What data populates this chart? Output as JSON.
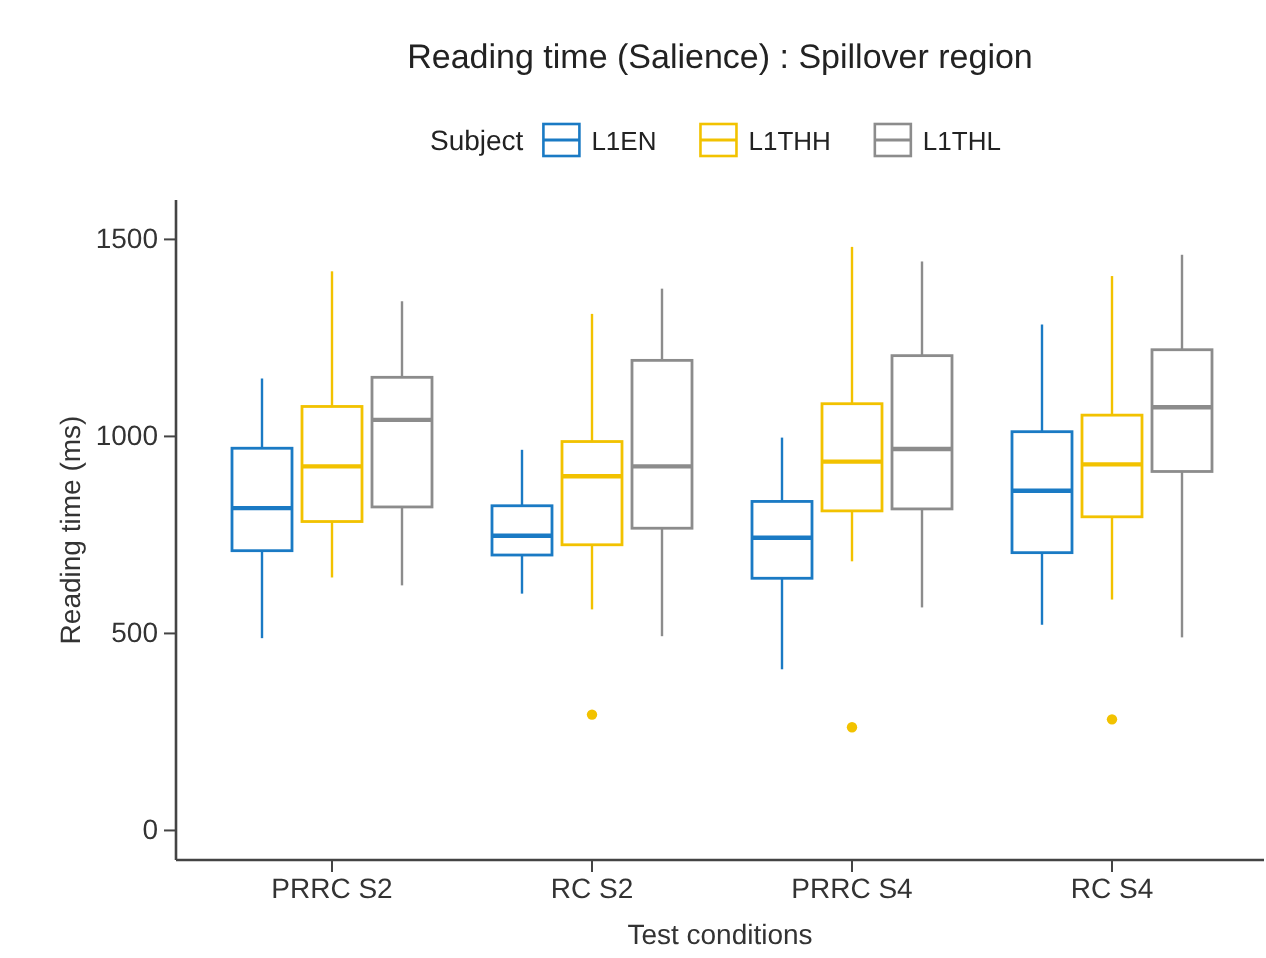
{
  "chart_data": {
    "type": "box",
    "title": "Reading time (Salience) : Spillover region",
    "xlabel": "Test conditions",
    "ylabel": "Reading time (ms)",
    "legend_title": "Subject",
    "legend": "top",
    "categories": [
      "PRRC S2",
      "RC S2",
      "PRRC S4",
      "RC S4"
    ],
    "ylim": [
      -75,
      1600
    ],
    "yticks": [
      0,
      500,
      1000,
      1500
    ],
    "grid": false,
    "series": [
      {
        "name": "L1EN",
        "color": "#1a7ac4",
        "boxes": [
          {
            "low": 488,
            "q1": 710,
            "median": 818,
            "q3": 970,
            "high": 1147
          },
          {
            "low": 601,
            "q1": 699,
            "median": 748,
            "q3": 824,
            "high": 966
          },
          {
            "low": 409,
            "q1": 640,
            "median": 743,
            "q3": 835,
            "high": 997
          },
          {
            "low": 522,
            "q1": 705,
            "median": 862,
            "q3": 1012,
            "high": 1284
          }
        ]
      },
      {
        "name": "L1THH",
        "color": "#f2c200",
        "boxes": [
          {
            "low": 642,
            "q1": 784,
            "median": 924,
            "q3": 1076,
            "high": 1419
          },
          {
            "low": 561,
            "q1": 725,
            "median": 899,
            "q3": 987,
            "high": 1311,
            "outliers": [
              294
            ]
          },
          {
            "low": 683,
            "q1": 811,
            "median": 936,
            "q3": 1083,
            "high": 1481,
            "outliers": [
              262
            ]
          },
          {
            "low": 586,
            "q1": 796,
            "median": 929,
            "q3": 1054,
            "high": 1407,
            "outliers": [
              282
            ]
          }
        ]
      },
      {
        "name": "L1THL",
        "color": "#8c8c8c",
        "boxes": [
          {
            "low": 622,
            "q1": 821,
            "median": 1042,
            "q3": 1150,
            "high": 1343
          },
          {
            "low": 493,
            "q1": 767,
            "median": 924,
            "q3": 1193,
            "high": 1375
          },
          {
            "low": 566,
            "q1": 816,
            "median": 968,
            "q3": 1205,
            "high": 1444
          },
          {
            "low": 490,
            "q1": 911,
            "median": 1074,
            "q3": 1220,
            "high": 1461
          }
        ]
      }
    ]
  }
}
